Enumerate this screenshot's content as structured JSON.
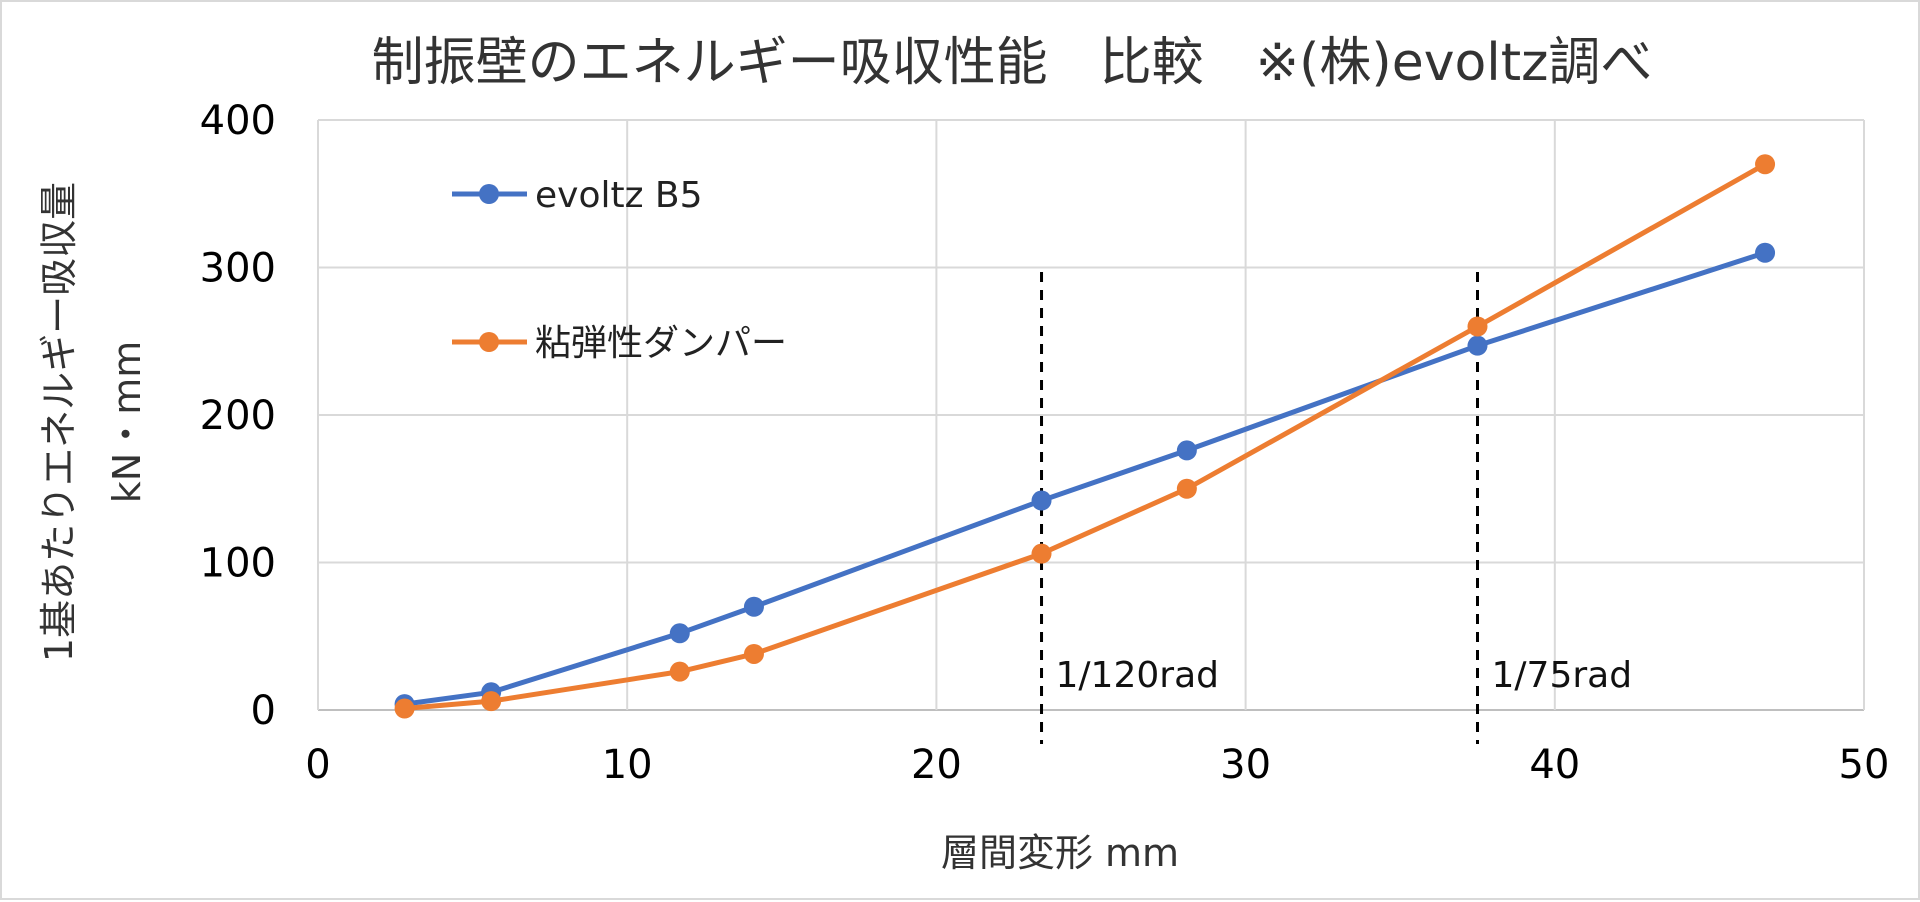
{
  "chart_data": {
    "type": "line",
    "title": "制振壁のエネルギー吸収性能　比較　※(株)evoltz調べ",
    "xlabel": "層間変形 mm",
    "ylabel": "1基あたりエネルギー吸収量",
    "ylabel_unit": "kN・mm",
    "xlim": [
      0,
      50
    ],
    "ylim": [
      0,
      400
    ],
    "x_ticks": [
      0,
      10,
      20,
      30,
      40,
      50
    ],
    "y_ticks": [
      0,
      100,
      200,
      300,
      400
    ],
    "grid": true,
    "legend_position": "top-left",
    "series": [
      {
        "name": "evoltz B5",
        "color": "#4472C4",
        "points": [
          {
            "x": 2.8,
            "y": 4
          },
          {
            "x": 5.6,
            "y": 12
          },
          {
            "x": 11.7,
            "y": 52
          },
          {
            "x": 14.1,
            "y": 70
          },
          {
            "x": 23.4,
            "y": 142
          },
          {
            "x": 28.1,
            "y": 176
          },
          {
            "x": 37.5,
            "y": 247
          },
          {
            "x": 46.8,
            "y": 310
          }
        ]
      },
      {
        "name": "粘弾性ダンパー",
        "color": "#ED7D31",
        "points": [
          {
            "x": 2.8,
            "y": 1
          },
          {
            "x": 5.6,
            "y": 6
          },
          {
            "x": 11.7,
            "y": 26
          },
          {
            "x": 14.1,
            "y": 38
          },
          {
            "x": 23.4,
            "y": 106
          },
          {
            "x": 28.1,
            "y": 150
          },
          {
            "x": 37.5,
            "y": 260
          },
          {
            "x": 46.8,
            "y": 370
          }
        ]
      }
    ],
    "reference_lines": [
      {
        "x": 23.4,
        "label": "1/120rad"
      },
      {
        "x": 37.5,
        "label": "1/75rad"
      }
    ]
  }
}
